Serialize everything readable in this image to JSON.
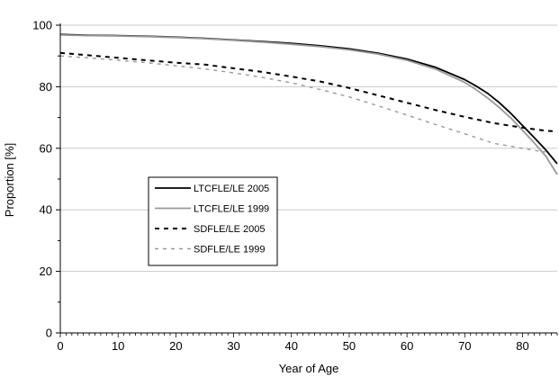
{
  "chart_data": {
    "type": "line",
    "title": "",
    "xlabel": "Year of Age",
    "ylabel": "Proportion [%]",
    "xlim": [
      0,
      86
    ],
    "ylim": [
      0,
      100
    ],
    "xticks": [
      0,
      10,
      20,
      30,
      40,
      50,
      60,
      70,
      80
    ],
    "yticks": [
      0,
      20,
      40,
      60,
      80,
      100
    ],
    "grid": "horizontal",
    "legend_position": "center-left",
    "series": [
      {
        "name": "LTCFLE/LE 2005",
        "color": "#000000",
        "style": "solid",
        "x": [
          0,
          5,
          10,
          15,
          20,
          25,
          30,
          35,
          40,
          45,
          50,
          55,
          60,
          65,
          70,
          72,
          74,
          76,
          78,
          80,
          82,
          84,
          86
        ],
        "y": [
          97,
          96.7,
          96.6,
          96.4,
          96.1,
          95.7,
          95.2,
          94.7,
          94.1,
          93.3,
          92.3,
          90.9,
          89.0,
          86.3,
          82.3,
          80.2,
          77.8,
          74.8,
          71.3,
          67.4,
          63.5,
          59.5,
          55.0
        ]
      },
      {
        "name": "LTCFLE/LE 1999",
        "color": "#999999",
        "style": "solid",
        "x": [
          0,
          5,
          10,
          15,
          20,
          25,
          30,
          35,
          40,
          45,
          50,
          55,
          60,
          65,
          70,
          72,
          74,
          76,
          78,
          80,
          82,
          84,
          86
        ],
        "y": [
          96.8,
          96.6,
          96.5,
          96.3,
          96.0,
          95.6,
          95.1,
          94.5,
          93.8,
          93.0,
          92.0,
          90.6,
          88.6,
          85.7,
          81.4,
          79.0,
          76.3,
          73.2,
          69.8,
          65.8,
          61.8,
          57.5,
          51.5
        ]
      },
      {
        "name": "SDFLE/LE 2005",
        "color": "#000000",
        "style": "dashed",
        "x": [
          0,
          5,
          10,
          15,
          20,
          25,
          30,
          35,
          40,
          45,
          50,
          55,
          60,
          65,
          70,
          75,
          80,
          82,
          84,
          86
        ],
        "y": [
          91,
          90.2,
          89.4,
          88.6,
          87.8,
          87.2,
          86.0,
          84.8,
          83.3,
          81.7,
          79.6,
          77.2,
          74.8,
          72.4,
          70.2,
          68.2,
          66.7,
          66.2,
          65.7,
          65.5
        ]
      },
      {
        "name": "SDFLE/LE 1999",
        "color": "#999999",
        "style": "dashed",
        "x": [
          0,
          5,
          10,
          15,
          20,
          25,
          30,
          35,
          40,
          45,
          50,
          55,
          60,
          65,
          70,
          75,
          80,
          82,
          84
        ],
        "y": [
          90,
          89.4,
          88.6,
          87.8,
          86.8,
          85.8,
          84.5,
          83.0,
          81.3,
          79.1,
          76.7,
          73.8,
          70.8,
          67.7,
          64.7,
          61.6,
          60.0,
          59.3,
          58.8
        ]
      }
    ]
  }
}
